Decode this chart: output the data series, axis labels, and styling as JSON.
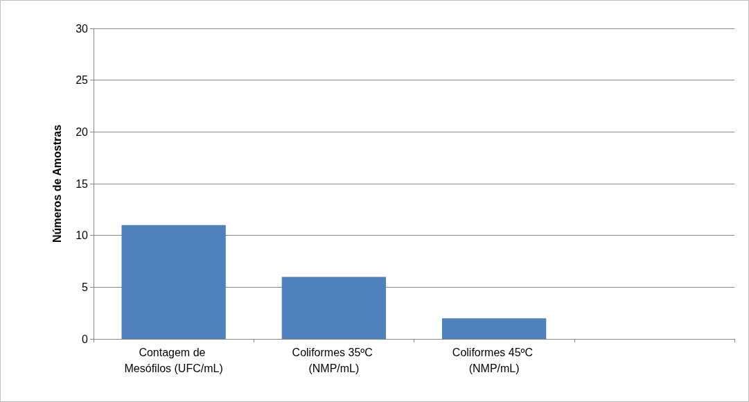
{
  "chart_data": {
    "type": "bar",
    "ylabel": "Números de Amostras",
    "categories": [
      "Contagem de Mesófilos (UFC/mL)",
      "Coliformes 35ºC (NMP/mL)",
      "Coliformes 45ºC (NMP/mL)",
      null
    ],
    "values": [
      11,
      6,
      2,
      null
    ],
    "color": "#4f81bd",
    "ylim": [
      0,
      30
    ],
    "yticks": [
      0,
      5,
      10,
      15,
      20,
      25,
      30
    ],
    "grid": "y"
  }
}
